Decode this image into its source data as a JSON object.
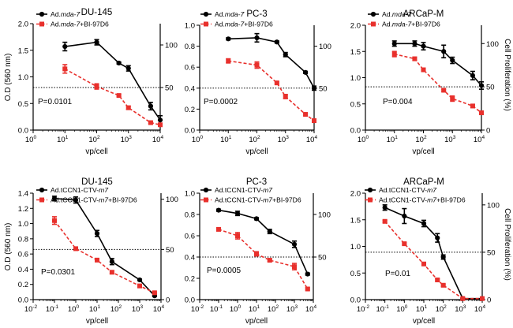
{
  "figure": {
    "left_axis_label": "O.D (560 nm)",
    "right_axis_label": "Cell Proliferation (%)",
    "x_axis_label": "vp/cell"
  },
  "chart_data": [
    {
      "type": "line",
      "title": "DU-145",
      "xscale": "log10",
      "xlim_exp": [
        0,
        4
      ],
      "xtick_exps": [
        0,
        1,
        2,
        3,
        4
      ],
      "xlabel": "vp/cell",
      "ylabel": "O.D (560 nm)",
      "ylim": [
        0,
        2.0
      ],
      "yticks": [
        "0.0",
        "0.5",
        "1.0",
        "1.5",
        "2.0"
      ],
      "right_ylabel": "Cell Proliferation (%)",
      "right_ticks": [
        {
          "od": 0.8,
          "label": "50"
        },
        {
          "od": 1.6,
          "label": "100"
        }
      ],
      "reference_line_od": 0.8,
      "p_value": "P=0.0101",
      "series": [
        {
          "name": "Ad.",
          "name_italic": "mda-7",
          "color": "#000000",
          "marker": "circle",
          "dash": false,
          "x": [
            10,
            100,
            500,
            1000,
            5000,
            10000
          ],
          "y": [
            1.57,
            1.65,
            1.26,
            1.16,
            0.45,
            0.19
          ],
          "err": [
            0.08,
            0.05,
            0.02,
            0.05,
            0.07,
            0.08
          ]
        },
        {
          "name": "Ad.",
          "name_italic": "mda-7",
          "name_suffix": "+BI-97D6",
          "color": "#e8302c",
          "marker": "square",
          "dash": true,
          "x": [
            10,
            100,
            500,
            1000,
            5000,
            10000
          ],
          "y": [
            1.15,
            0.82,
            0.65,
            0.42,
            0.14,
            0.1
          ],
          "err": [
            0.08,
            0.05,
            0.02,
            0.03,
            0.02,
            0.02
          ]
        }
      ]
    },
    {
      "type": "line",
      "title": "PC-3",
      "xscale": "log10",
      "xlim_exp": [
        0,
        4
      ],
      "xtick_exps": [
        0,
        1,
        2,
        3,
        4
      ],
      "xlabel": "vp/cell",
      "ylabel": "",
      "ylim": [
        0,
        1.0
      ],
      "yticks": [
        "0.0",
        "0.2",
        "0.4",
        "0.6",
        "0.8",
        "1.0"
      ],
      "right_ylabel": "",
      "right_ticks": [
        {
          "od": 0.4,
          "label": "50"
        },
        {
          "od": 0.8,
          "label": "100"
        }
      ],
      "reference_line_od": 0.4,
      "p_value": "P=0.0002",
      "series": [
        {
          "name": "Ad.",
          "name_italic": "mda-7",
          "color": "#000000",
          "marker": "circle",
          "dash": false,
          "x": [
            10,
            100,
            500,
            1000,
            5000,
            10000
          ],
          "y": [
            0.87,
            0.88,
            0.84,
            0.72,
            0.55,
            0.4
          ],
          "err": [
            0.01,
            0.04,
            0.01,
            0.02,
            0.01,
            0.02
          ]
        },
        {
          "name": "Ad.",
          "name_italic": "mda-7",
          "name_suffix": "+BI-97D6",
          "color": "#e8302c",
          "marker": "square",
          "dash": true,
          "x": [
            10,
            100,
            500,
            1000,
            5000,
            10000
          ],
          "y": [
            0.66,
            0.62,
            0.45,
            0.32,
            0.15,
            0.09
          ],
          "err": [
            0.02,
            0.03,
            0.01,
            0.02,
            0.01,
            0.01
          ]
        }
      ]
    },
    {
      "type": "line",
      "title": "ARCaP-M",
      "xscale": "log10",
      "xlim_exp": [
        0,
        4
      ],
      "xtick_exps": [
        0,
        1,
        2,
        3,
        4
      ],
      "xlabel": "vp/cell",
      "ylabel": "",
      "ylim": [
        0,
        2.0
      ],
      "yticks": [
        "0.0",
        "0.5",
        "1.0",
        "1.5",
        "2.0"
      ],
      "right_ylabel": "Cell Proliferation (%)",
      "right_ticks": [
        {
          "od": 0.0,
          "label": "0"
        },
        {
          "od": 0.825,
          "label": "50"
        },
        {
          "od": 1.65,
          "label": "100"
        }
      ],
      "reference_line_od": 0.825,
      "p_value": "P=0.004",
      "series": [
        {
          "name": "Ad.",
          "name_italic": "mda-7",
          "color": "#000000",
          "marker": "circle",
          "dash": false,
          "x": [
            10,
            50,
            100,
            500,
            1000,
            5000,
            10000
          ],
          "y": [
            1.65,
            1.65,
            1.6,
            1.5,
            1.33,
            1.04,
            0.85
          ],
          "err": [
            0.05,
            0.05,
            0.07,
            0.12,
            0.06,
            0.08,
            0.07
          ]
        },
        {
          "name": "Ad.",
          "name_italic": "mda-7",
          "name_suffix": "+BI-97D6",
          "color": "#e8302c",
          "marker": "square",
          "dash": true,
          "x": [
            10,
            50,
            100,
            500,
            1000,
            5000,
            10000
          ],
          "y": [
            1.45,
            1.36,
            1.15,
            0.76,
            0.6,
            0.46,
            0.33
          ],
          "err": [
            0.05,
            0.03,
            0.03,
            0.02,
            0.05,
            0.03,
            0.02
          ]
        }
      ]
    },
    {
      "type": "line",
      "title": "DU-145",
      "xscale": "log10",
      "xlim_exp": [
        -2,
        4
      ],
      "xtick_exps": [
        -2,
        -1,
        0,
        1,
        2,
        3,
        4
      ],
      "xlabel": "vp/cell",
      "ylabel": "O.D (560 nm)",
      "ylim": [
        0,
        1.4
      ],
      "yticks": [
        "0.0",
        "0.2",
        "0.4",
        "0.6",
        "0.8",
        "1.0",
        "1.2",
        "1.4"
      ],
      "right_ylabel": "",
      "right_ticks": [
        {
          "od": 0.0,
          "label": "0"
        },
        {
          "od": 0.66,
          "label": "50"
        },
        {
          "od": 1.32,
          "label": "100"
        }
      ],
      "reference_line_od": 0.66,
      "p_value": "P=0.0301",
      "series": [
        {
          "name": "Ad.tCCN1-CTV-",
          "name_italic": "m7",
          "color": "#000000",
          "marker": "circle",
          "dash": false,
          "x": [
            0.1,
            1,
            10,
            50,
            1000,
            5000
          ],
          "y": [
            1.33,
            1.31,
            0.87,
            0.5,
            0.26,
            0.05
          ],
          "err": [
            0.03,
            0.04,
            0.04,
            0.04,
            0.01,
            0.01
          ]
        },
        {
          "name": "Ad.tCCN1-CTV-",
          "name_italic": "m7",
          "name_suffix": "+BI-97D6",
          "color": "#e8302c",
          "marker": "square",
          "dash": true,
          "x": [
            0.1,
            1,
            10,
            50,
            1000,
            5000
          ],
          "y": [
            1.04,
            0.67,
            0.52,
            0.36,
            0.18,
            0.09
          ],
          "err": [
            0.05,
            0.02,
            0.02,
            0.02,
            0.02,
            0.01
          ]
        }
      ]
    },
    {
      "type": "line",
      "title": "PC-3",
      "xscale": "log10",
      "xlim_exp": [
        -2,
        4
      ],
      "xtick_exps": [
        -2,
        -1,
        0,
        1,
        2,
        3,
        4
      ],
      "xlabel": "vp/cell",
      "ylabel": "",
      "ylim": [
        0,
        1.0
      ],
      "yticks": [
        "0.0",
        "0.2",
        "0.4",
        "0.6",
        "0.8",
        "1.0"
      ],
      "right_ylabel": "",
      "right_ticks": [
        {
          "od": 0.4,
          "label": "50"
        },
        {
          "od": 0.8,
          "label": "100"
        }
      ],
      "reference_line_od": 0.4,
      "p_value": "P=0.0005",
      "series": [
        {
          "name": "Ad.tCCN1-CTV-",
          "name_italic": "m7",
          "color": "#000000",
          "marker": "circle",
          "dash": false,
          "x": [
            0.1,
            1,
            10,
            50,
            1000,
            5000
          ],
          "y": [
            0.84,
            0.81,
            0.76,
            0.64,
            0.52,
            0.24
          ],
          "err": [
            0.01,
            0.02,
            0.01,
            0.02,
            0.03,
            0.01
          ]
        },
        {
          "name": "Ad.tCCN1-CTV-",
          "name_italic": "m7",
          "name_suffix": "+BI-97D6",
          "color": "#e8302c",
          "marker": "square",
          "dash": true,
          "x": [
            0.1,
            1,
            10,
            50,
            1000,
            5000
          ],
          "y": [
            0.66,
            0.6,
            0.43,
            0.37,
            0.31,
            0.1
          ],
          "err": [
            0.01,
            0.03,
            0.02,
            0.01,
            0.03,
            0.01
          ]
        }
      ]
    },
    {
      "type": "line",
      "title": "ARCaP-M",
      "xscale": "log10",
      "xlim_exp": [
        -2,
        4
      ],
      "xtick_exps": [
        -2,
        -1,
        0,
        1,
        2,
        3,
        4
      ],
      "xlabel": "vp/cell",
      "ylabel": "",
      "ylim": [
        0,
        2.0
      ],
      "yticks": [
        "0.0",
        "0.5",
        "1.0",
        "1.5",
        "2.0"
      ],
      "right_ylabel": "Cell Proliferation (%)",
      "right_ticks": [
        {
          "od": 0.0,
          "label": "0"
        },
        {
          "od": 0.89,
          "label": "50"
        },
        {
          "od": 1.78,
          "label": "100"
        }
      ],
      "reference_line_od": 0.89,
      "p_value": "P=0.01",
      "series": [
        {
          "name": "Ad.tCCN1-CTV-",
          "name_italic": "m7",
          "color": "#000000",
          "marker": "circle",
          "dash": false,
          "x": [
            0.1,
            1,
            10,
            50,
            100,
            1000,
            10000
          ],
          "y": [
            1.73,
            1.57,
            1.43,
            1.16,
            0.8,
            0.02,
            0.02
          ],
          "err": [
            0.05,
            0.14,
            0.06,
            0.08,
            0.04,
            0.01,
            0.01
          ]
        },
        {
          "name": "Ad.tCCN1-CTV-",
          "name_italic": "m7",
          "name_suffix": "+BI-97D6",
          "color": "#e8302c",
          "marker": "square",
          "dash": true,
          "x": [
            0.1,
            1,
            10,
            50,
            100,
            1000,
            10000
          ],
          "y": [
            1.47,
            1.05,
            0.67,
            0.37,
            0.27,
            0.02,
            0.02
          ],
          "err": [
            0.02,
            0.02,
            0.02,
            0.02,
            0.02,
            0.01,
            0.01
          ]
        }
      ]
    }
  ]
}
